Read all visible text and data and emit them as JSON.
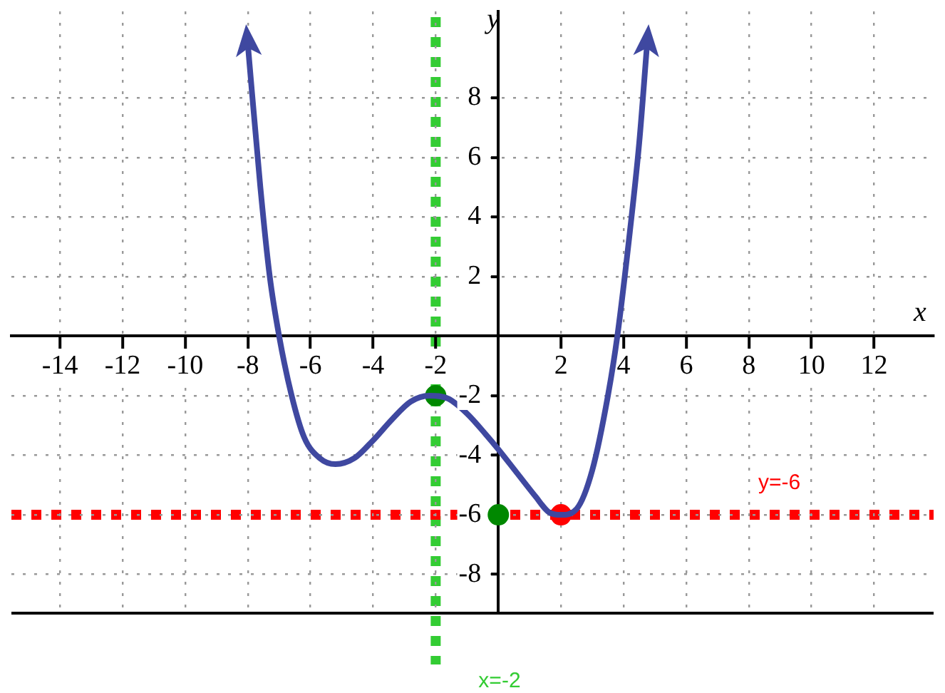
{
  "chart_data": {
    "type": "line",
    "xlabel": "x",
    "ylabel": "y",
    "xlim": [
      -15.55,
      13.9
    ],
    "ylim": [
      -9.3,
      10.9
    ],
    "xticks": [
      -14,
      -12,
      -10,
      -8,
      -6,
      -4,
      -2,
      2,
      4,
      6,
      8,
      10,
      12
    ],
    "yticks": [
      -8,
      -6,
      -4,
      -2,
      2,
      4,
      6,
      8
    ],
    "grid": true,
    "legend": false,
    "marker": "none",
    "series": [
      {
        "color": "#3f48a0",
        "x": [
          -8,
          -7.6,
          -7.3,
          -7,
          -6.6,
          -6.2,
          -5.7,
          -5.2,
          -4.6,
          -4,
          -3.4,
          -2.8,
          -2.2,
          -1.6,
          -1,
          -0.4,
          0,
          0.6,
          1.2,
          1.6,
          2,
          2.5,
          3,
          3.5,
          3.8,
          4.2,
          4.5,
          4.75
        ],
        "values": [
          9.8,
          5,
          2,
          0,
          -2,
          -3.4,
          -4.1,
          -4.3,
          -4.1,
          -3.5,
          -2.8,
          -2.2,
          -2,
          -2.1,
          -2.6,
          -3.3,
          -3.8,
          -4.6,
          -5.4,
          -5.9,
          -6,
          -5.8,
          -4.5,
          -2,
          0,
          3.5,
          6.5,
          9.8
        ]
      },
      {
        "type": "scatter",
        "color": "#008800",
        "marker": "circle",
        "x": [
          -2,
          0
        ],
        "values": [
          -2,
          -6
        ]
      },
      {
        "type": "scatter",
        "color": "#ff0000",
        "marker": "circle",
        "x": [
          2
        ],
        "values": [
          -6
        ]
      }
    ],
    "ref_lines": [
      {
        "axis": "x",
        "value": -2,
        "label": "x=-2",
        "color": "#33cc33",
        "line_style": "dotted"
      },
      {
        "axis": "y",
        "value": -6,
        "label": "y=-6",
        "color": "#ff0000",
        "line_style": "dotted"
      }
    ]
  }
}
